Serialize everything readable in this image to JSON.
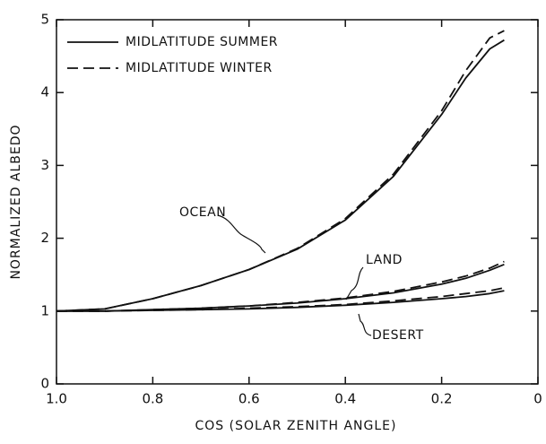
{
  "chart_data": {
    "type": "line",
    "xlabel": "COS (SOLAR ZENITH ANGLE)",
    "ylabel": "NORMALIZED ALBEDO",
    "xlim": [
      1,
      0
    ],
    "ylim": [
      0,
      5
    ],
    "xticks": [
      {
        "value": 1,
        "label": "1.0"
      },
      0.8,
      0.6,
      0.4,
      0.2,
      0
    ],
    "yticks": [
      0,
      1,
      2,
      3,
      4,
      5
    ],
    "color": "#111111",
    "legend": [
      {
        "name": "MIDLATITUDE SUMMER",
        "dash": "solid"
      },
      {
        "name": "MIDLATITUDE WINTER",
        "dash": "dashed"
      }
    ],
    "x": [
      1.0,
      0.9,
      0.8,
      0.7,
      0.6,
      0.5,
      0.4,
      0.3,
      0.2,
      0.15,
      0.1,
      0.07
    ],
    "curves": [
      {
        "label": "OCEAN",
        "series": [
          {
            "values": [
              1.0,
              1.03,
              1.17,
              1.35,
              1.57,
              1.85,
              2.25,
              2.85,
              3.7,
              4.2,
              4.6,
              4.72
            ]
          },
          {
            "values": [
              1.0,
              1.03,
              1.17,
              1.35,
              1.57,
              1.86,
              2.27,
              2.88,
              3.75,
              4.3,
              4.75,
              4.85
            ]
          }
        ]
      },
      {
        "label": "LAND",
        "series": [
          {
            "values": [
              1.0,
              1.0,
              1.02,
              1.04,
              1.07,
              1.11,
              1.17,
              1.25,
              1.37,
              1.45,
              1.56,
              1.64
            ]
          },
          {
            "values": [
              1.0,
              1.0,
              1.02,
              1.04,
              1.07,
              1.12,
              1.18,
              1.27,
              1.4,
              1.48,
              1.59,
              1.68
            ]
          }
        ]
      },
      {
        "label": "DESERT",
        "series": [
          {
            "values": [
              1.0,
              1.0,
              1.01,
              1.02,
              1.03,
              1.05,
              1.08,
              1.12,
              1.17,
              1.2,
              1.24,
              1.28
            ]
          },
          {
            "values": [
              1.0,
              1.0,
              1.01,
              1.02,
              1.04,
              1.06,
              1.09,
              1.14,
              1.2,
              1.24,
              1.28,
              1.32
            ]
          }
        ]
      }
    ]
  }
}
